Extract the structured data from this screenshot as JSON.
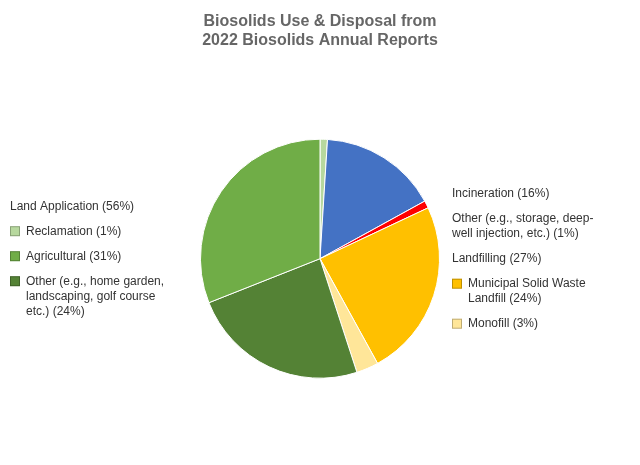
{
  "chart_data": {
    "type": "pie",
    "title": "Biosolids Use & Disposal from\n2022 Biosolids Annual Reports",
    "values": [
      1,
      16,
      1,
      24,
      3,
      24,
      31
    ],
    "colors": [
      "#b7d89e",
      "#4472c4",
      "#ff0000",
      "#ffc000",
      "#ffe699",
      "#548235",
      "#70ad47"
    ],
    "annotations": [
      {
        "text": "Incineration (16%)"
      },
      {
        "text": "Other (e.g., storage, deep-\nwell injection, etc.) (1%)"
      },
      {
        "text": "Landfilling (27%)"
      },
      {
        "text": "Municipal Solid Waste\nLandfill (24%)",
        "color": "#ffc000"
      },
      {
        "text": "Monofill (3%)",
        "color": "#ffe699"
      },
      {
        "text": "Land Application (56%)"
      },
      {
        "text": "Reclamation (1%)",
        "color": "#b7d89e"
      },
      {
        "text": "Agricultural (31%)",
        "color": "#70ad47"
      },
      {
        "text": "Other (e.g., home garden,\nlandscaping, golf course\netc.) (24%)",
        "color": "#548235"
      }
    ]
  }
}
